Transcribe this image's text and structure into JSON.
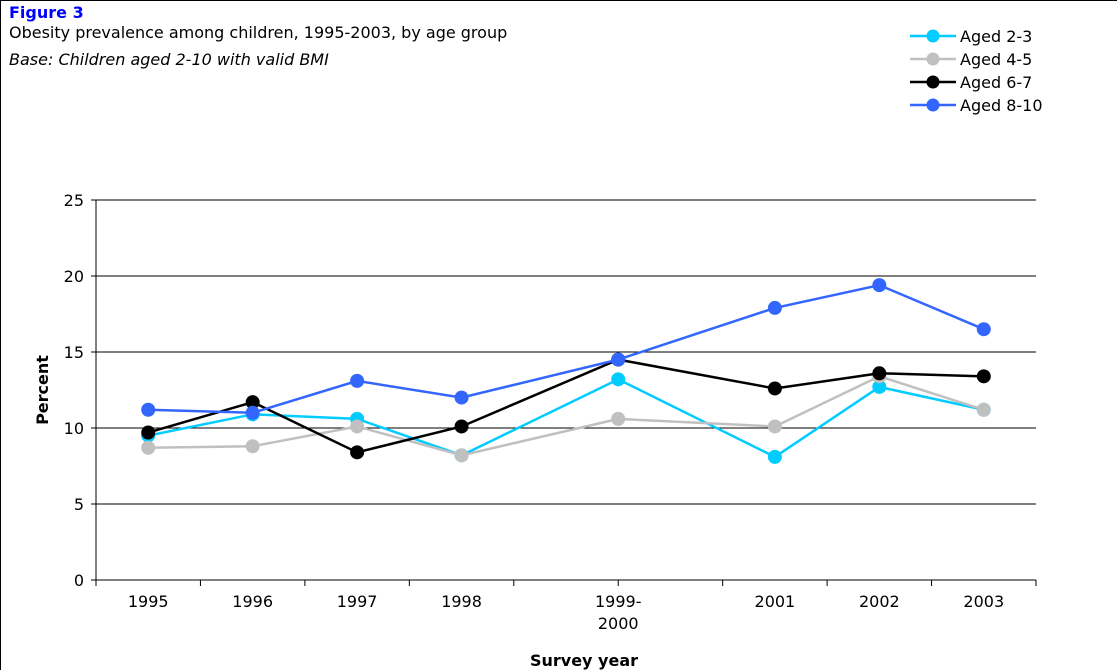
{
  "figure": {
    "label": "Figure 3",
    "title": "Obesity prevalence among children, 1995-2003, by age group",
    "base": "Base: Children aged 2-10 with valid BMI"
  },
  "chart_data": {
    "type": "line",
    "categories": [
      "1995",
      "1996",
      "1997",
      "1998",
      "1999-2000",
      "2001",
      "2002",
      "2003"
    ],
    "category_labels": [
      [
        "1995"
      ],
      [
        "1996"
      ],
      [
        "1997"
      ],
      [
        "1998"
      ],
      [
        "1999-",
        "2000"
      ],
      [
        "2001"
      ],
      [
        "2002"
      ],
      [
        "2003"
      ]
    ],
    "x_positions": [
      1995,
      1996,
      1997,
      1998,
      1999.5,
      2001,
      2002,
      2003
    ],
    "xlabel": "Survey year",
    "ylabel": "Percent",
    "ylim": [
      0,
      25
    ],
    "yticks": [
      0,
      5,
      10,
      15,
      20,
      25
    ],
    "grid": "horizontal",
    "legend": "top-right",
    "series": [
      {
        "name": "Aged 2-3",
        "color": "#00ccff",
        "values": [
          9.5,
          10.9,
          10.6,
          8.2,
          13.2,
          8.1,
          12.7,
          11.2
        ]
      },
      {
        "name": "Aged 4-5",
        "color": "#c0c0c0",
        "values": [
          8.7,
          8.8,
          10.1,
          8.2,
          10.6,
          10.1,
          13.4,
          11.2
        ]
      },
      {
        "name": "Aged 6-7",
        "color": "#000000",
        "values": [
          9.7,
          11.7,
          8.4,
          10.1,
          14.5,
          12.6,
          13.6,
          13.4
        ]
      },
      {
        "name": "Aged 8-10",
        "color": "#3366ff",
        "values": [
          11.2,
          11.0,
          13.1,
          12.0,
          14.5,
          17.9,
          19.4,
          16.5
        ]
      }
    ]
  }
}
